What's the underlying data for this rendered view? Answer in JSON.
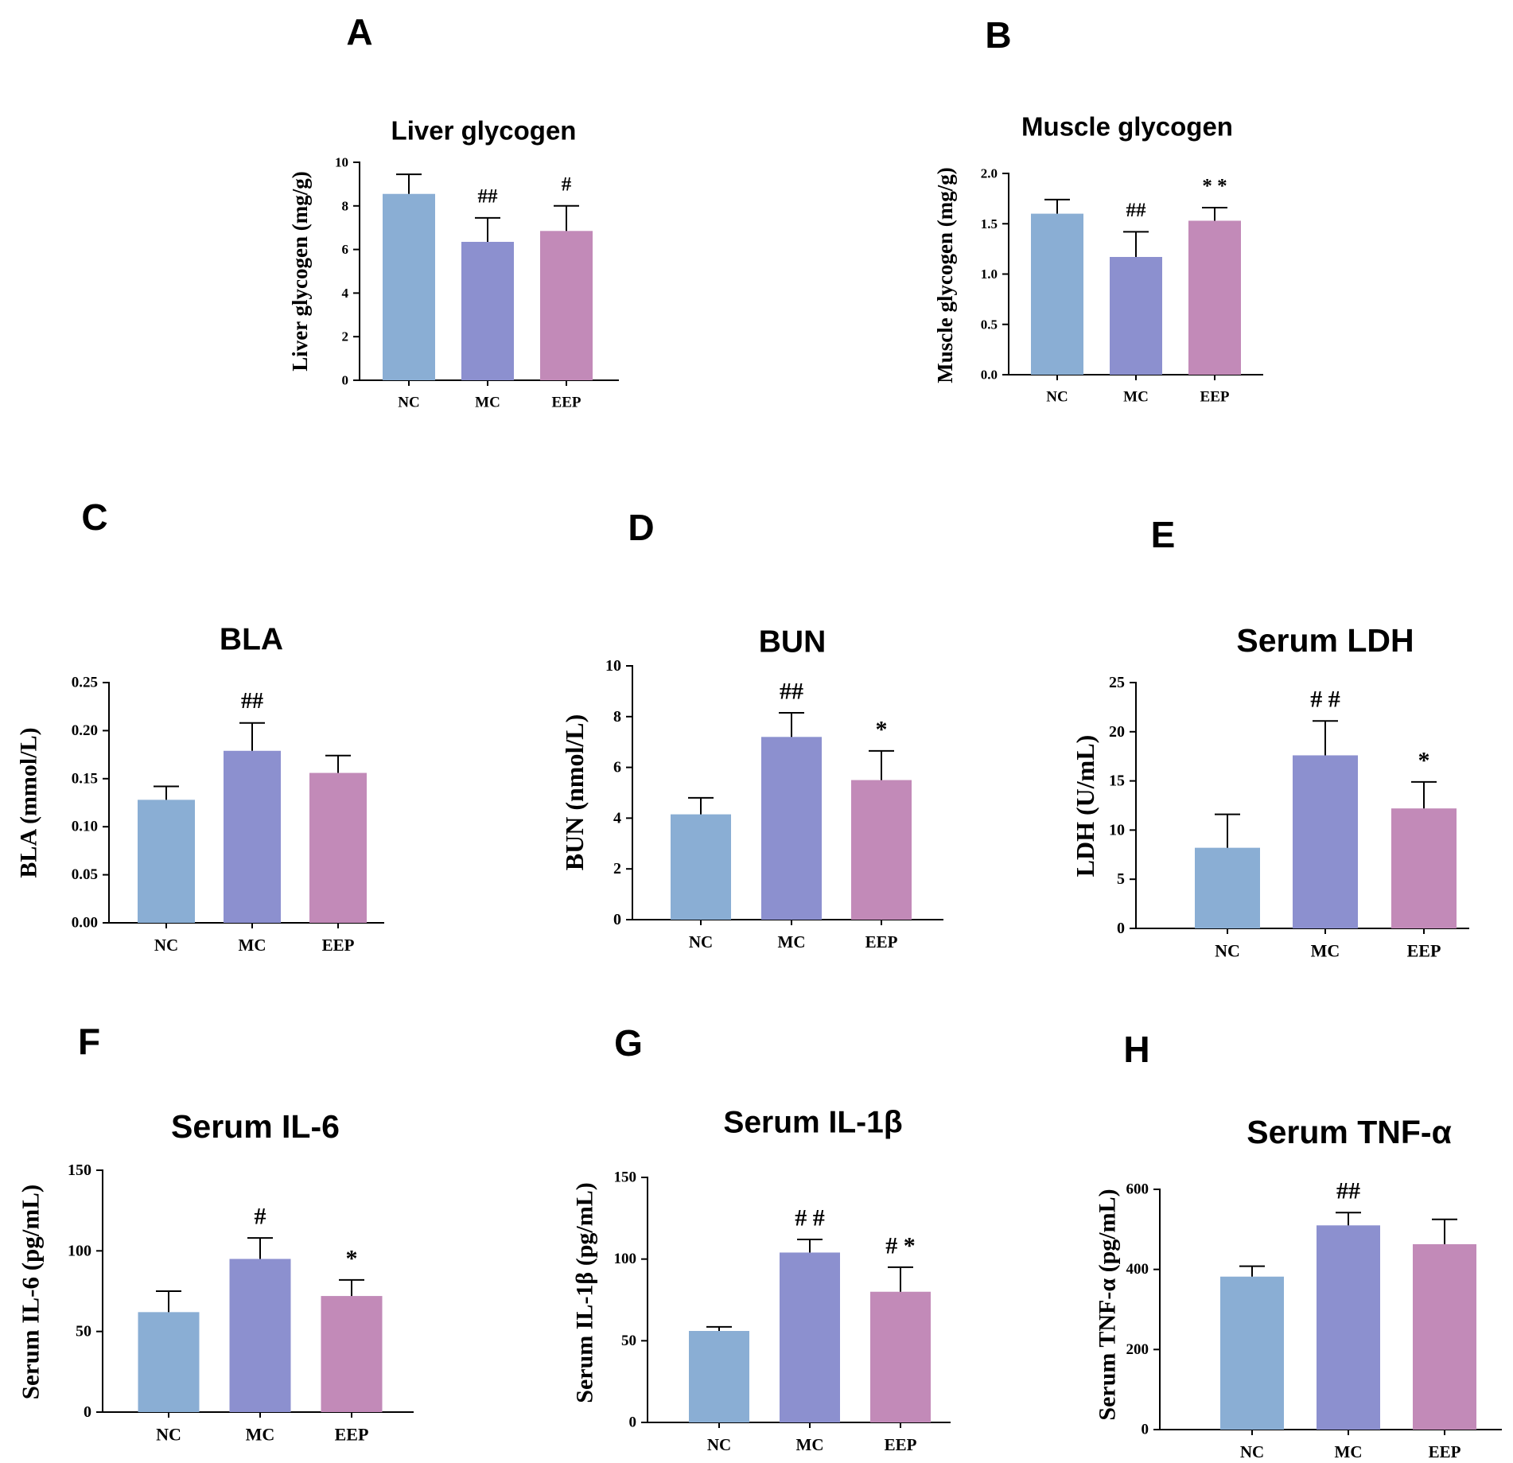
{
  "colors": {
    "NC": "#8aaed4",
    "MC": "#8c90cf",
    "EEP": "#c28ab8"
  },
  "chart_data": [
    {
      "id": "A",
      "panel": "A",
      "type": "bar",
      "title": "Liver glycogen",
      "ylabel": "Liver glycogen (mg/g)",
      "ylim": [
        0,
        10
      ],
      "yticks": [
        0,
        2,
        4,
        6,
        8,
        10
      ],
      "ytick_labels": [
        "0",
        "2",
        "4",
        "6",
        "8",
        "10"
      ],
      "categories": [
        "NC",
        "MC",
        "EEP"
      ],
      "values": [
        8.55,
        6.35,
        6.85
      ],
      "errors": [
        0.9,
        1.1,
        1.15
      ],
      "annotations": [
        "",
        "##",
        "#"
      ]
    },
    {
      "id": "B",
      "panel": "B",
      "type": "bar",
      "title": "Muscle glycogen",
      "ylabel": "Muscle glycogen (mg/g)",
      "ylim": [
        0,
        2.0
      ],
      "yticks": [
        0,
        0.5,
        1.0,
        1.5,
        2.0
      ],
      "ytick_labels": [
        "0.0",
        "0.5",
        "1.0",
        "1.5",
        "2.0"
      ],
      "categories": [
        "NC",
        "MC",
        "EEP"
      ],
      "values": [
        1.6,
        1.17,
        1.53
      ],
      "errors": [
        0.14,
        0.25,
        0.13
      ],
      "annotations": [
        "",
        "##",
        "* *"
      ]
    },
    {
      "id": "C",
      "panel": "C",
      "type": "bar",
      "title": "BLA",
      "ylabel": "BLA (mmol/L)",
      "ylim": [
        0,
        0.25
      ],
      "yticks": [
        0,
        0.05,
        0.1,
        0.15,
        0.2,
        0.25
      ],
      "ytick_labels": [
        "0.00",
        "0.05",
        "0.10",
        "0.15",
        "0.20",
        "0.25"
      ],
      "categories": [
        "NC",
        "MC",
        "EEP"
      ],
      "values": [
        0.128,
        0.179,
        0.156
      ],
      "errors": [
        0.014,
        0.029,
        0.018
      ],
      "annotations": [
        "",
        "##",
        ""
      ]
    },
    {
      "id": "D",
      "panel": "D",
      "type": "bar",
      "title": "BUN",
      "ylabel": "BUN (nmol/L)",
      "ylim": [
        0,
        10
      ],
      "yticks": [
        0,
        2,
        4,
        6,
        8,
        10
      ],
      "ytick_labels": [
        "0",
        "2",
        "4",
        "6",
        "8",
        "10"
      ],
      "categories": [
        "NC",
        "MC",
        "EEP"
      ],
      "values": [
        4.15,
        7.2,
        5.5
      ],
      "errors": [
        0.65,
        0.95,
        1.15
      ],
      "annotations": [
        "",
        "##",
        "*"
      ]
    },
    {
      "id": "E",
      "panel": "E",
      "type": "bar",
      "title": "Serum LDH",
      "ylabel": "LDH (U/mL)",
      "ylim": [
        0,
        25
      ],
      "yticks": [
        0,
        5,
        10,
        15,
        20,
        25
      ],
      "ytick_labels": [
        "0",
        "5",
        "10",
        "15",
        "20",
        "25"
      ],
      "categories": [
        "NC",
        "MC",
        "EEP"
      ],
      "values": [
        8.2,
        17.6,
        12.2
      ],
      "errors": [
        3.4,
        3.5,
        2.7
      ],
      "annotations": [
        "",
        "# #",
        "*"
      ]
    },
    {
      "id": "F",
      "panel": "F",
      "type": "bar",
      "title": "Serum IL-6",
      "ylabel": "Serum IL-6 (pg/mL)",
      "ylim": [
        0,
        150
      ],
      "yticks": [
        0,
        50,
        100,
        150
      ],
      "ytick_labels": [
        "0",
        "50",
        "100",
        "150"
      ],
      "categories": [
        "NC",
        "MC",
        "EEP"
      ],
      "values": [
        62,
        95,
        72
      ],
      "errors": [
        13,
        13,
        10
      ],
      "annotations": [
        "",
        "#",
        "*"
      ]
    },
    {
      "id": "G",
      "panel": "G",
      "type": "bar",
      "title": "Serum IL-1β",
      "ylabel": "Serum IL-1β (pg/mL)",
      "ylim": [
        0,
        150
      ],
      "yticks": [
        0,
        50,
        100,
        150
      ],
      "ytick_labels": [
        "0",
        "50",
        "100",
        "150"
      ],
      "categories": [
        "NC",
        "MC",
        "EEP"
      ],
      "values": [
        56,
        104,
        80
      ],
      "errors": [
        2.5,
        8,
        15
      ],
      "annotations": [
        "",
        "# #",
        "# *"
      ]
    },
    {
      "id": "H",
      "panel": "H",
      "type": "bar",
      "title": "Serum TNF-α",
      "ylabel": "Serum TNF-α (pg/mL)",
      "ylim": [
        0,
        600
      ],
      "yticks": [
        0,
        200,
        400,
        600
      ],
      "ytick_labels": [
        "0",
        "200",
        "400",
        "600"
      ],
      "categories": [
        "NC",
        "MC",
        "EEP"
      ],
      "values": [
        382,
        510,
        463
      ],
      "errors": [
        26,
        32,
        62
      ],
      "annotations": [
        "",
        "##",
        ""
      ]
    }
  ]
}
